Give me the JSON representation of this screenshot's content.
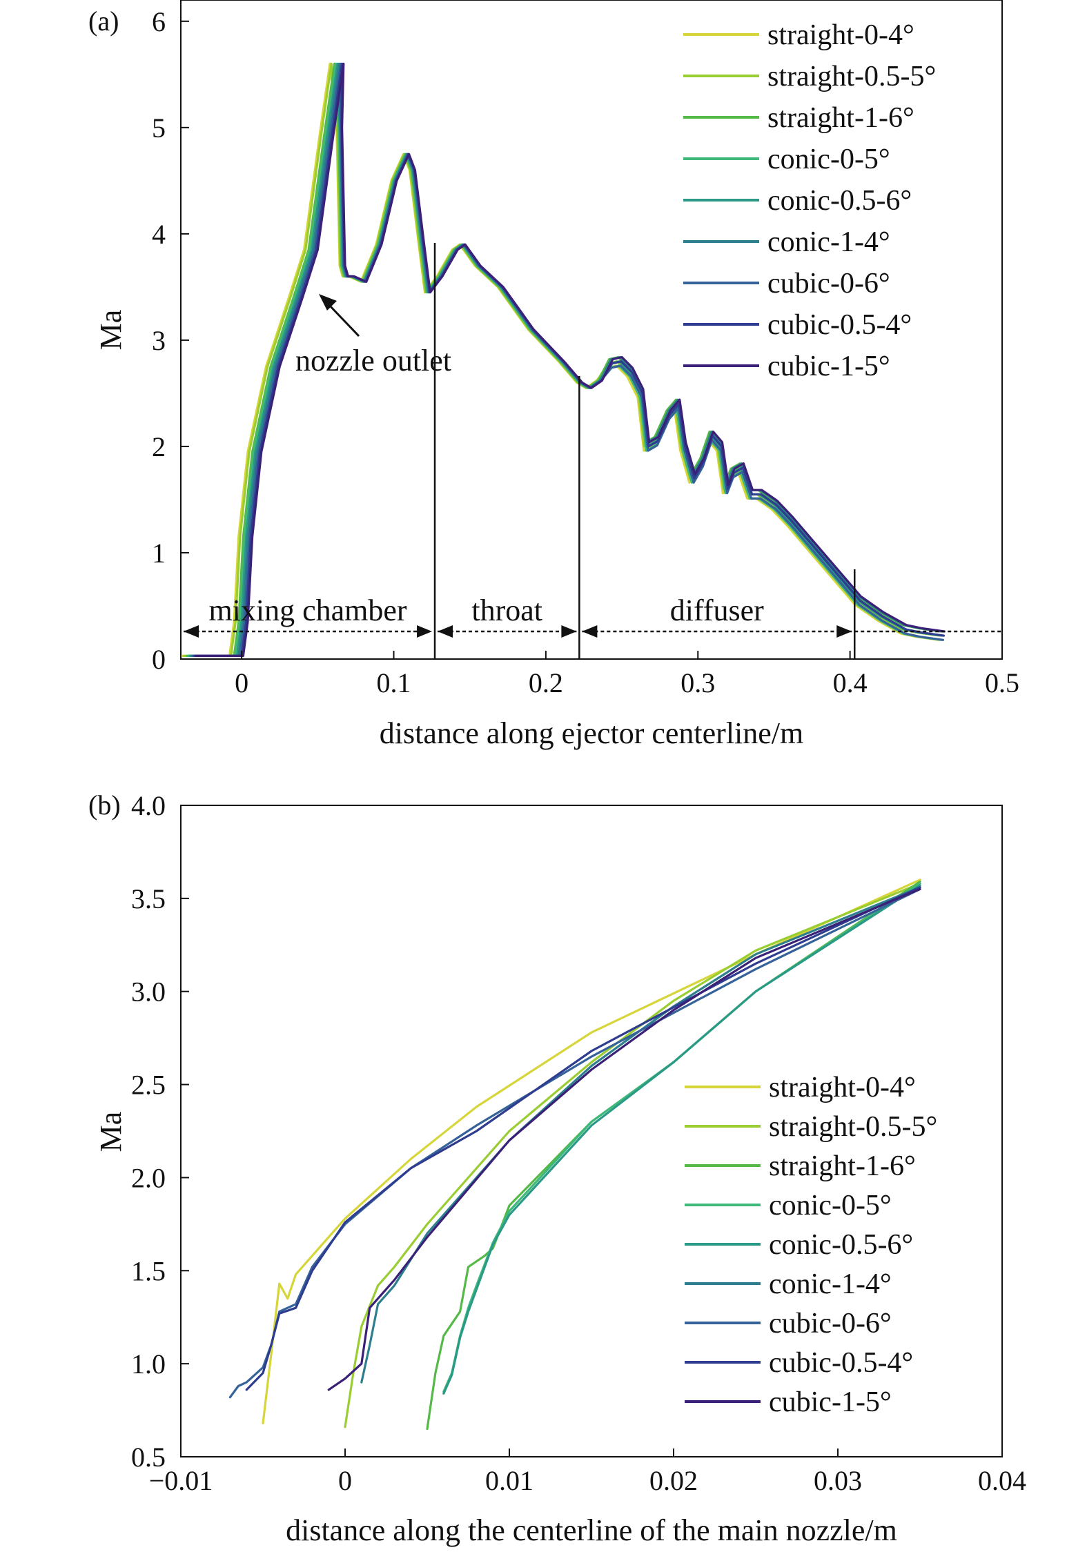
{
  "palette": [
    "#d6d63a",
    "#9acd32",
    "#55b947",
    "#3fb87c",
    "#2a9a87",
    "#2d7f8e",
    "#36629a",
    "#2e3d8f",
    "#3a2077"
  ],
  "chart_data": [
    {
      "panel": "(a)",
      "type": "line",
      "xlabel": "distance along ejector centerline/m",
      "ylabel": "Ma",
      "xlim": [
        -0.04,
        0.5
      ],
      "ylim": [
        0,
        6.2
      ],
      "xticks": [
        0,
        0.1,
        0.2,
        0.3,
        0.4,
        0.5
      ],
      "xtick_labels": [
        "0",
        "0.1",
        "0.2",
        "0.3",
        "0.4",
        "0.5"
      ],
      "yticks": [
        0,
        1,
        2,
        3,
        4,
        5,
        6
      ],
      "ytick_labels": [
        "0",
        "1",
        "2",
        "3",
        "4",
        "5",
        "6"
      ],
      "legend_position": "top-right",
      "legend": [
        "straight-0-4°",
        "straight-0.5-5°",
        "straight-1-6°",
        "conic-0-5°",
        "conic-0.5-6°",
        "conic-1-4°",
        "cubic-0-6°",
        "cubic-0.5-4°",
        "cubic-1-5°"
      ],
      "sections": [
        {
          "label": "mixing chamber",
          "x_start": -0.04,
          "x_end": 0.127
        },
        {
          "label": "throat",
          "x_start": 0.127,
          "x_end": 0.222
        },
        {
          "label": "diffuser",
          "x_start": 0.222,
          "x_end": 0.403
        }
      ],
      "section_dividers": [
        0.127,
        0.222,
        0.403
      ],
      "annotation": {
        "text": "nozzle outlet",
        "x": 0.043,
        "y": 3.6
      },
      "base_curve": {
        "x": [
          -0.035,
          -0.004,
          -0.001,
          0.002,
          0.008,
          0.02,
          0.035,
          0.045,
          0.055,
          0.062,
          0.064,
          0.066,
          0.068,
          0.072,
          0.08,
          0.09,
          0.1,
          0.108,
          0.112,
          0.118,
          0.122,
          0.13,
          0.14,
          0.145,
          0.155,
          0.17,
          0.19,
          0.21,
          0.222,
          0.228,
          0.235,
          0.242,
          0.248,
          0.255,
          0.262,
          0.266,
          0.272,
          0.28,
          0.286,
          0.29,
          0.296,
          0.302,
          0.308,
          0.314,
          0.318,
          0.322,
          0.328,
          0.334,
          0.34,
          0.35,
          0.36,
          0.375,
          0.39,
          0.405,
          0.42,
          0.435,
          0.445,
          0.46
        ],
        "y": [
          0.03,
          0.03,
          0.35,
          1.15,
          1.95,
          2.75,
          3.4,
          3.85,
          4.9,
          5.6,
          5.0,
          3.7,
          3.6,
          3.6,
          3.55,
          3.9,
          4.5,
          4.75,
          4.6,
          3.9,
          3.45,
          3.6,
          3.85,
          3.9,
          3.7,
          3.5,
          3.1,
          2.8,
          2.6,
          2.55,
          2.62,
          2.78,
          2.8,
          2.7,
          2.5,
          2.0,
          2.05,
          2.3,
          2.4,
          2.0,
          1.7,
          1.85,
          2.1,
          2.0,
          1.6,
          1.75,
          1.8,
          1.55,
          1.55,
          1.45,
          1.3,
          1.05,
          0.8,
          0.55,
          0.4,
          0.28,
          0.25,
          0.22
        ]
      },
      "series_offsets": [
        -0.004,
        -0.003,
        -0.001,
        0.0,
        0.001,
        0.002,
        0.003,
        0.004,
        0.005
      ]
    },
    {
      "panel": "(b)",
      "type": "line",
      "xlabel": "distance along the centerline of the main nozzle/m",
      "ylabel": "Ma",
      "xlim": [
        -0.01,
        0.04
      ],
      "ylim": [
        0.5,
        4.0
      ],
      "xticks": [
        -0.01,
        0,
        0.01,
        0.02,
        0.03,
        0.04
      ],
      "xtick_labels": [
        "−0.01",
        "0",
        "0.01",
        "0.02",
        "0.03",
        "0.04"
      ],
      "yticks": [
        0.5,
        1.0,
        1.5,
        2.0,
        2.5,
        3.0,
        3.5,
        4.0
      ],
      "ytick_labels": [
        "0.5",
        "1.0",
        "1.5",
        "2.0",
        "2.5",
        "3.0",
        "3.5",
        "4.0"
      ],
      "legend_position": "lower-right",
      "legend": [
        "straight-0-4°",
        "straight-0.5-5°",
        "straight-1-6°",
        "conic-0-5°",
        "conic-0.5-6°",
        "conic-1-4°",
        "cubic-0-6°",
        "cubic-0.5-4°",
        "cubic-1-5°"
      ],
      "series": [
        {
          "name": "straight-0-4°",
          "x": [
            -0.005,
            -0.0045,
            -0.004,
            -0.0035,
            -0.003,
            -0.002,
            -0.001,
            0.0,
            0.004,
            0.008,
            0.015,
            0.025,
            0.035
          ],
          "y": [
            0.68,
            1.05,
            1.43,
            1.35,
            1.48,
            1.58,
            1.68,
            1.78,
            2.1,
            2.38,
            2.78,
            3.2,
            3.6
          ]
        },
        {
          "name": "straight-0.5-5°",
          "x": [
            0.0,
            0.0005,
            0.001,
            0.002,
            0.003,
            0.005,
            0.01,
            0.015,
            0.02,
            0.025,
            0.035
          ],
          "y": [
            0.66,
            0.95,
            1.2,
            1.42,
            1.52,
            1.75,
            2.25,
            2.62,
            2.95,
            3.22,
            3.58
          ]
        },
        {
          "name": "straight-1-6°",
          "x": [
            0.005,
            0.0055,
            0.006,
            0.007,
            0.0075,
            0.008,
            0.0085,
            0.009,
            0.01,
            0.015,
            0.02,
            0.025,
            0.035
          ],
          "y": [
            0.65,
            0.95,
            1.15,
            1.28,
            1.52,
            1.55,
            1.58,
            1.62,
            1.85,
            2.3,
            2.62,
            3.0,
            3.59
          ]
        },
        {
          "name": "conic-0-5°",
          "x": [
            0.006,
            0.0065,
            0.007,
            0.0075,
            0.008,
            0.009,
            0.01,
            0.015,
            0.02,
            0.025,
            0.035
          ],
          "y": [
            0.85,
            0.95,
            1.15,
            1.3,
            1.42,
            1.65,
            1.82,
            2.3,
            2.62,
            3.0,
            3.58
          ]
        },
        {
          "name": "conic-0.5-6°",
          "x": [
            0.006,
            0.0065,
            0.007,
            0.0075,
            0.008,
            0.009,
            0.01,
            0.015,
            0.02,
            0.025,
            0.035
          ],
          "y": [
            0.84,
            0.94,
            1.14,
            1.28,
            1.4,
            1.64,
            1.8,
            2.28,
            2.62,
            3.0,
            3.57
          ]
        },
        {
          "name": "conic-1-4°",
          "x": [
            0.001,
            0.0015,
            0.002,
            0.003,
            0.005,
            0.01,
            0.015,
            0.02,
            0.025,
            0.035
          ],
          "y": [
            0.9,
            1.1,
            1.32,
            1.42,
            1.7,
            2.2,
            2.6,
            2.92,
            3.2,
            3.56
          ]
        },
        {
          "name": "cubic-0-6°",
          "x": [
            -0.007,
            -0.0065,
            -0.006,
            -0.005,
            -0.0045,
            -0.004,
            -0.003,
            -0.002,
            0.0,
            0.004,
            0.008,
            0.015,
            0.025,
            0.035
          ],
          "y": [
            0.82,
            0.88,
            0.9,
            0.98,
            1.1,
            1.28,
            1.32,
            1.52,
            1.75,
            2.05,
            2.28,
            2.65,
            3.12,
            3.55
          ]
        },
        {
          "name": "cubic-0.5-4°",
          "x": [
            -0.006,
            -0.005,
            -0.0045,
            -0.004,
            -0.003,
            -0.002,
            0.0,
            0.004,
            0.008,
            0.015,
            0.025,
            0.035
          ],
          "y": [
            0.86,
            0.95,
            1.1,
            1.27,
            1.3,
            1.5,
            1.76,
            2.05,
            2.25,
            2.68,
            3.15,
            3.56
          ]
        },
        {
          "name": "cubic-1-5°",
          "x": [
            -0.001,
            0.0,
            0.001,
            0.0015,
            0.002,
            0.003,
            0.005,
            0.01,
            0.015,
            0.02,
            0.025,
            0.035
          ],
          "y": [
            0.86,
            0.92,
            1.0,
            1.3,
            1.35,
            1.45,
            1.68,
            2.2,
            2.58,
            2.9,
            3.18,
            3.55
          ]
        }
      ]
    }
  ]
}
